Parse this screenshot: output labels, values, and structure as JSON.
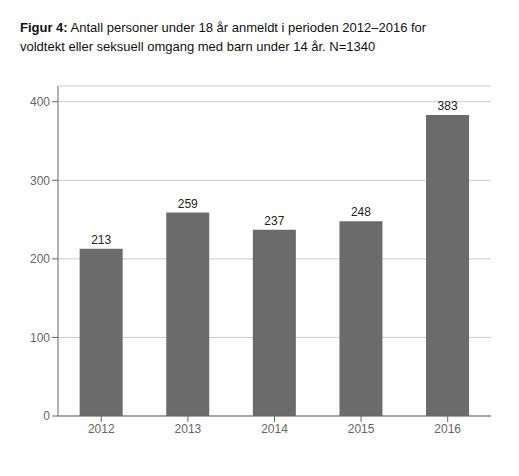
{
  "chart_data": {
    "type": "bar",
    "title": "Figur 4: Antall personer under 18 år anmeldt i perioden 2012–2016 for",
    "subtitle": "voldtekt eller seksuell omgang med barn under 14 år. N=1340",
    "categories": [
      "2012",
      "2013",
      "2014",
      "2015",
      "2016"
    ],
    "values": [
      213,
      259,
      237,
      248,
      383
    ],
    "color": "#6b6b6b",
    "ylim": [
      0,
      420
    ],
    "yticks": [
      0,
      100,
      200,
      300,
      400
    ],
    "grid": true,
    "data_labels": true
  }
}
